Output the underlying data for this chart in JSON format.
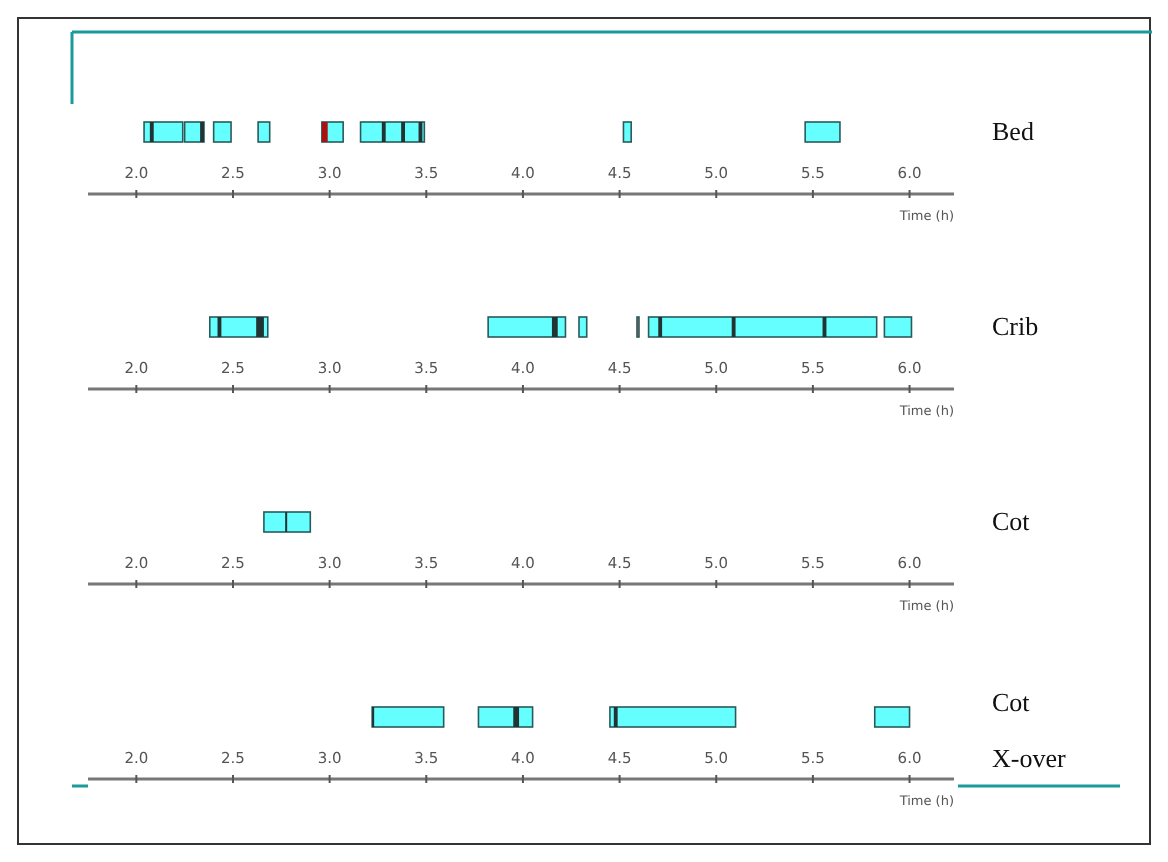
{
  "chart_data": [
    {
      "type": "bar",
      "orientation": "horizontal",
      "xlabel": "Time (h)",
      "categories": [
        "Bed"
      ],
      "xlim": [
        1.75,
        6.23
      ],
      "xticks": [
        {
          "value": 2,
          "label": "2.0"
        },
        {
          "value": 2.5,
          "label": "2.5"
        },
        {
          "value": 3,
          "label": "3.0"
        },
        {
          "value": 3.5,
          "label": "3.5"
        },
        {
          "value": 4,
          "label": "4.0"
        },
        {
          "value": 4.5,
          "label": "4.5"
        },
        {
          "value": 5,
          "label": "5.0"
        },
        {
          "value": 5.5,
          "label": "5.5"
        },
        {
          "value": 6,
          "label": "6.0"
        }
      ],
      "series": [
        {
          "color": "#66ffff",
          "base": [
            2.04
          ],
          "values": [
            0.2
          ]
        },
        {
          "color": "#66ffff",
          "base": [
            2.25
          ],
          "values": [
            0.1
          ]
        },
        {
          "color": "#66ffff",
          "base": [
            2.4
          ],
          "values": [
            0.09
          ]
        },
        {
          "color": "#66ffff",
          "base": [
            2.63
          ],
          "values": [
            0.06
          ]
        },
        {
          "color": "#66ffff",
          "base": [
            2.96
          ],
          "values": [
            0.11
          ]
        },
        {
          "color": "#66ffff",
          "base": [
            3.16
          ],
          "values": [
            0.33
          ]
        },
        {
          "color": "#66ffff",
          "base": [
            4.52
          ],
          "values": [
            0.04
          ]
        },
        {
          "color": "#66ffff",
          "base": [
            5.46
          ],
          "values": [
            0.18
          ]
        },
        {
          "color": "#aa1111",
          "base": [
            2.96
          ],
          "values": [
            0.03
          ]
        },
        {
          "color": "#223333",
          "base": [
            2.07
          ],
          "values": [
            0.02
          ]
        },
        {
          "color": "#223333",
          "base": [
            2.33
          ],
          "values": [
            0.02
          ]
        },
        {
          "color": "#223333",
          "base": [
            3.27
          ],
          "values": [
            0.02
          ]
        },
        {
          "color": "#223333",
          "base": [
            3.37
          ],
          "values": [
            0.02
          ]
        },
        {
          "color": "#223333",
          "base": [
            3.46
          ],
          "values": [
            0.02
          ]
        }
      ]
    },
    {
      "type": "bar",
      "orientation": "horizontal",
      "xlabel": "Time (h)",
      "categories": [
        "Crib"
      ],
      "xlim": [
        1.75,
        6.23
      ],
      "xticks": [
        {
          "value": 2,
          "label": "2.0"
        },
        {
          "value": 2.5,
          "label": "2.5"
        },
        {
          "value": 3,
          "label": "3.0"
        },
        {
          "value": 3.5,
          "label": "3.5"
        },
        {
          "value": 4,
          "label": "4.0"
        },
        {
          "value": 4.5,
          "label": "4.5"
        },
        {
          "value": 5,
          "label": "5.0"
        },
        {
          "value": 5.5,
          "label": "5.5"
        },
        {
          "value": 6,
          "label": "6.0"
        }
      ],
      "series": [
        {
          "color": "#66ffff",
          "base": [
            2.38
          ],
          "values": [
            0.3
          ]
        },
        {
          "color": "#66ffff",
          "base": [
            3.82
          ],
          "values": [
            0.4
          ]
        },
        {
          "color": "#66ffff",
          "base": [
            4.29
          ],
          "values": [
            0.04
          ]
        },
        {
          "color": "#66ffff",
          "base": [
            4.65
          ],
          "values": [
            1.18
          ]
        },
        {
          "color": "#66ffff",
          "base": [
            5.87
          ],
          "values": [
            0.14
          ]
        },
        {
          "color": "#ff6666",
          "base": [
            4.59
          ],
          "values": [
            0.01
          ]
        },
        {
          "color": "#223333",
          "base": [
            2.42
          ],
          "values": [
            0.02
          ]
        },
        {
          "color": "#223333",
          "base": [
            2.62
          ],
          "values": [
            0.04
          ]
        },
        {
          "color": "#223333",
          "base": [
            4.15
          ],
          "values": [
            0.03
          ]
        },
        {
          "color": "#223333",
          "base": [
            4.7
          ],
          "values": [
            0.02
          ]
        },
        {
          "color": "#223333",
          "base": [
            5.08
          ],
          "values": [
            0.02
          ]
        },
        {
          "color": "#223333",
          "base": [
            5.55
          ],
          "values": [
            0.02
          ]
        }
      ]
    },
    {
      "type": "bar",
      "orientation": "horizontal",
      "xlabel": "Time (h)",
      "categories": [
        "Cot"
      ],
      "xlim": [
        1.75,
        6.23
      ],
      "xticks": [
        {
          "value": 2,
          "label": "2.0"
        },
        {
          "value": 2.5,
          "label": "2.5"
        },
        {
          "value": 3,
          "label": "3.0"
        },
        {
          "value": 3.5,
          "label": "3.5"
        },
        {
          "value": 4,
          "label": "4.0"
        },
        {
          "value": 4.5,
          "label": "4.5"
        },
        {
          "value": 5,
          "label": "5.0"
        },
        {
          "value": 5.5,
          "label": "5.5"
        },
        {
          "value": 6,
          "label": "6.0"
        }
      ],
      "series": [
        {
          "color": "#66ffff",
          "base": [
            2.66
          ],
          "values": [
            0.24
          ]
        },
        {
          "color": "#223333",
          "base": [
            2.77
          ],
          "values": [
            0.01
          ]
        }
      ]
    },
    {
      "type": "bar",
      "orientation": "horizontal",
      "xlabel": "Time (h)",
      "categories": [
        "Cot X-over"
      ],
      "xlim": [
        1.75,
        6.23
      ],
      "xticks": [
        {
          "value": 2,
          "label": "2.0"
        },
        {
          "value": 2.5,
          "label": "2.5"
        },
        {
          "value": 3,
          "label": "3.0"
        },
        {
          "value": 3.5,
          "label": "3.5"
        },
        {
          "value": 4,
          "label": "4.0"
        },
        {
          "value": 4.5,
          "label": "4.5"
        },
        {
          "value": 5,
          "label": "5.0"
        },
        {
          "value": 5.5,
          "label": "5.5"
        },
        {
          "value": 6,
          "label": "6.0"
        }
      ],
      "series": [
        {
          "color": "#66ffff",
          "base": [
            3.22
          ],
          "values": [
            0.37
          ]
        },
        {
          "color": "#66ffff",
          "base": [
            3.77
          ],
          "values": [
            0.28
          ]
        },
        {
          "color": "#66ffff",
          "base": [
            4.45
          ],
          "values": [
            0.65
          ]
        },
        {
          "color": "#66ffff",
          "base": [
            5.82
          ],
          "values": [
            0.18
          ]
        },
        {
          "color": "#223333",
          "base": [
            3.22
          ],
          "values": [
            0.01
          ]
        },
        {
          "color": "#223333",
          "base": [
            3.95
          ],
          "values": [
            0.03
          ]
        },
        {
          "color": "#223333",
          "base": [
            4.47
          ],
          "values": [
            0.02
          ]
        }
      ]
    }
  ]
}
